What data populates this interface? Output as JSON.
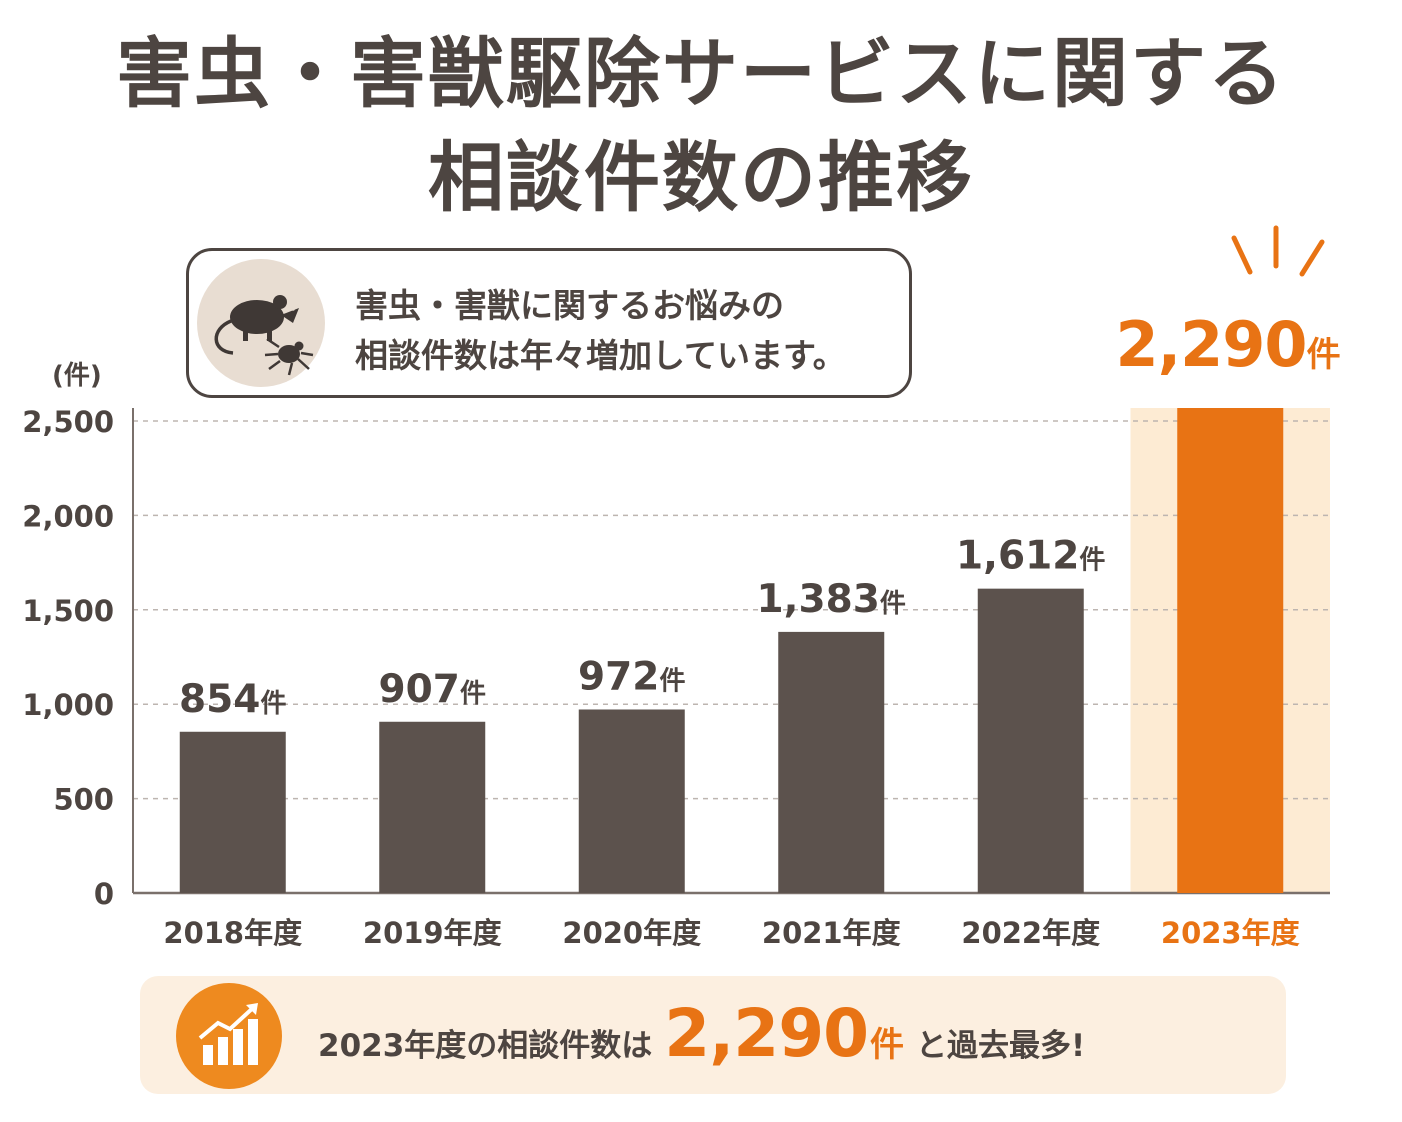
{
  "title": {
    "line1": "害虫・害獣駆除サービスに関する",
    "line2": "相談件数の推移"
  },
  "callout": {
    "line1": "害虫・害獣に関するお悩みの",
    "line2": "相談件数は年々増加しています。",
    "icon": "rat-and-tick-icon"
  },
  "highlight": {
    "value": "2,290",
    "unit": "件",
    "color": "#e87314"
  },
  "banner": {
    "prefix": "2023年度の相談件数は",
    "value": "2,290",
    "unit": "件",
    "suffix": "と過去最多!",
    "icon": "growth-chart-icon"
  },
  "chart_data": {
    "type": "bar",
    "ylabel": "(件)",
    "ylim": [
      0,
      2500
    ],
    "yticks": [
      "0",
      "500",
      "1,000",
      "1,500",
      "2,000",
      "2,500"
    ],
    "grid": true,
    "categories": [
      "2018年度",
      "2019年度",
      "2020年度",
      "2021年度",
      "2022年度",
      "2023年度"
    ],
    "values": [
      854,
      907,
      972,
      1383,
      1612,
      2290
    ],
    "value_labels": [
      "854",
      "907",
      "972",
      "1,383",
      "1,612",
      "2,290"
    ],
    "value_unit": "件",
    "highlight_index": 5,
    "bar_color": "#5c524d",
    "highlight_color": "#e87314",
    "highlight_band_color": "#fdebd3"
  }
}
